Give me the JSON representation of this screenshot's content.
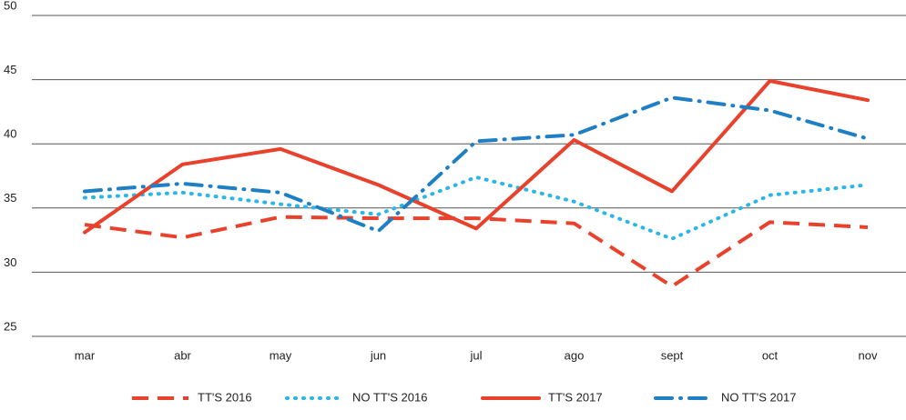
{
  "chart_data": {
    "type": "line",
    "categories": [
      "mar",
      "abr",
      "may",
      "jun",
      "jul",
      "ago",
      "sept",
      "oct",
      "nov"
    ],
    "series": [
      {
        "name": "TT'S 2016",
        "color": "#e8412c",
        "style": "dashed",
        "values": [
          33.7,
          32.7,
          34.3,
          34.2,
          34.2,
          33.8,
          28.9,
          33.9,
          33.5
        ]
      },
      {
        "name": "NO TT'S 2016",
        "color": "#29b6e8",
        "style": "dotted",
        "values": [
          35.8,
          36.2,
          35.3,
          34.5,
          37.4,
          35.5,
          32.6,
          36.0,
          36.8
        ]
      },
      {
        "name": "TT'S 2017",
        "color": "#e8412c",
        "style": "solid",
        "values": [
          33.1,
          38.4,
          39.6,
          36.8,
          33.4,
          40.3,
          36.3,
          44.9,
          43.4
        ]
      },
      {
        "name": "NO TT'S 2017",
        "color": "#1e7fc4",
        "style": "dashdot",
        "values": [
          36.3,
          36.9,
          36.2,
          33.2,
          40.2,
          40.7,
          43.6,
          42.6,
          40.4
        ]
      }
    ],
    "ylim": [
      25,
      50
    ],
    "yticks": [
      25,
      30,
      35,
      40,
      45,
      50
    ],
    "grid": true,
    "legend": "bottom"
  }
}
